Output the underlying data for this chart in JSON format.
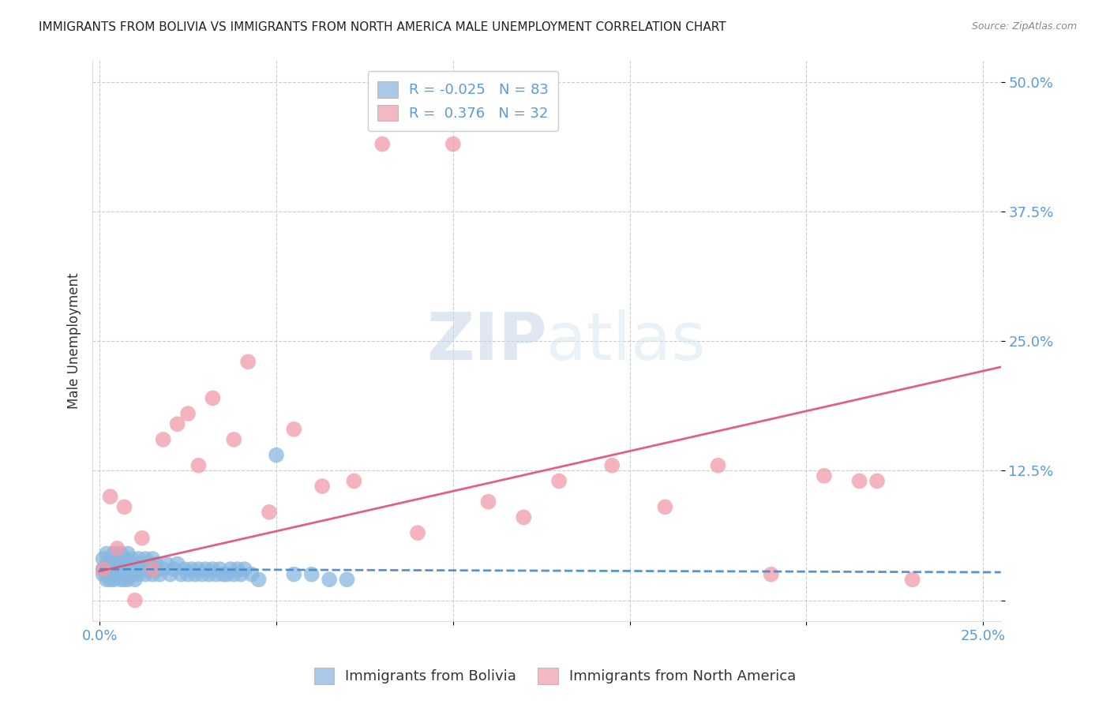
{
  "title": "IMMIGRANTS FROM BOLIVIA VS IMMIGRANTS FROM NORTH AMERICA MALE UNEMPLOYMENT CORRELATION CHART",
  "source": "Source: ZipAtlas.com",
  "ylabel": "Male Unemployment",
  "xlim": [
    -0.002,
    0.255
  ],
  "ylim": [
    -0.02,
    0.52
  ],
  "bolivia_scatter_color": "#88b8e0",
  "north_america_scatter_color": "#f09aaa",
  "bolivia_line_color": "#4488cc",
  "north_america_line_color": "#e05070",
  "bolivia_legend_color": "#aac8e8",
  "north_america_legend_color": "#f4b8c4",
  "legend_r_bolivia": "-0.025",
  "legend_n_bolivia": "83",
  "legend_r_north_america": "0.376",
  "legend_n_north_america": "32",
  "legend_label_bolivia": "Immigrants from Bolivia",
  "legend_label_north_america": "Immigrants from North America",
  "bolivia_line_start_y": 0.03,
  "bolivia_line_end_y": 0.027,
  "na_line_start_y": 0.028,
  "na_line_end_y": 0.225,
  "bolivia_x": [
    0.001,
    0.001,
    0.001,
    0.002,
    0.002,
    0.002,
    0.002,
    0.002,
    0.003,
    0.003,
    0.003,
    0.003,
    0.003,
    0.004,
    0.004,
    0.004,
    0.004,
    0.005,
    0.005,
    0.005,
    0.005,
    0.006,
    0.006,
    0.006,
    0.006,
    0.007,
    0.007,
    0.007,
    0.007,
    0.008,
    0.008,
    0.008,
    0.008,
    0.009,
    0.009,
    0.009,
    0.01,
    0.01,
    0.01,
    0.011,
    0.011,
    0.012,
    0.012,
    0.013,
    0.013,
    0.014,
    0.014,
    0.015,
    0.015,
    0.016,
    0.016,
    0.017,
    0.018,
    0.019,
    0.02,
    0.021,
    0.022,
    0.023,
    0.024,
    0.025,
    0.026,
    0.027,
    0.028,
    0.029,
    0.03,
    0.031,
    0.032,
    0.033,
    0.034,
    0.035,
    0.036,
    0.037,
    0.038,
    0.039,
    0.04,
    0.041,
    0.043,
    0.045,
    0.05,
    0.055,
    0.06,
    0.065,
    0.07
  ],
  "bolivia_y": [
    0.03,
    0.025,
    0.04,
    0.02,
    0.035,
    0.025,
    0.045,
    0.03,
    0.025,
    0.035,
    0.02,
    0.04,
    0.03,
    0.025,
    0.035,
    0.045,
    0.02,
    0.03,
    0.025,
    0.04,
    0.035,
    0.02,
    0.03,
    0.045,
    0.025,
    0.035,
    0.02,
    0.04,
    0.03,
    0.025,
    0.035,
    0.045,
    0.02,
    0.03,
    0.025,
    0.04,
    0.02,
    0.035,
    0.03,
    0.025,
    0.04,
    0.03,
    0.035,
    0.025,
    0.04,
    0.03,
    0.035,
    0.025,
    0.04,
    0.03,
    0.035,
    0.025,
    0.03,
    0.035,
    0.025,
    0.03,
    0.035,
    0.025,
    0.03,
    0.025,
    0.03,
    0.025,
    0.03,
    0.025,
    0.03,
    0.025,
    0.03,
    0.025,
    0.03,
    0.025,
    0.025,
    0.03,
    0.025,
    0.03,
    0.025,
    0.03,
    0.025,
    0.02,
    0.14,
    0.025,
    0.025,
    0.02,
    0.02
  ],
  "north_america_x": [
    0.001,
    0.003,
    0.005,
    0.007,
    0.01,
    0.012,
    0.015,
    0.018,
    0.022,
    0.025,
    0.028,
    0.032,
    0.038,
    0.042,
    0.048,
    0.055,
    0.063,
    0.072,
    0.08,
    0.09,
    0.1,
    0.11,
    0.12,
    0.13,
    0.145,
    0.16,
    0.175,
    0.19,
    0.205,
    0.215,
    0.22,
    0.23
  ],
  "north_america_y": [
    0.03,
    0.1,
    0.05,
    0.09,
    0.0,
    0.06,
    0.03,
    0.155,
    0.17,
    0.18,
    0.13,
    0.195,
    0.155,
    0.23,
    0.085,
    0.165,
    0.11,
    0.115,
    0.44,
    0.065,
    0.44,
    0.095,
    0.08,
    0.115,
    0.13,
    0.09,
    0.13,
    0.025,
    0.12,
    0.115,
    0.115,
    0.02
  ]
}
